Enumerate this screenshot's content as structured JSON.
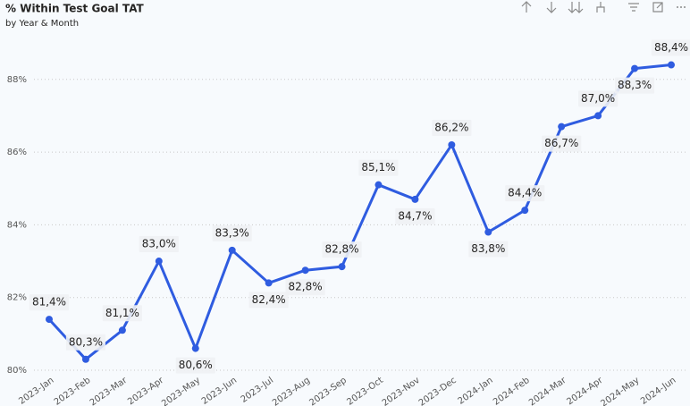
{
  "chart_data": {
    "type": "line",
    "title": "% Within Test Goal TAT",
    "subtitle": "by Year & Month",
    "categories": [
      "2023-Jan",
      "2023-Feb",
      "2023-Mar",
      "2023-Apr",
      "2023-May",
      "2023-Jun",
      "2023-Jul",
      "2023-Aug",
      "2023-Sep",
      "2023-Oct",
      "2023-Nov",
      "2023-Dec",
      "2024-Jan",
      "2024-Feb",
      "2024-Mar",
      "2024-Apr",
      "2024-May",
      "2024-Jun"
    ],
    "values": [
      81.4,
      80.3,
      81.1,
      83.0,
      80.6,
      83.3,
      82.4,
      82.75,
      82.85,
      85.1,
      84.7,
      86.2,
      83.8,
      84.4,
      86.7,
      87.0,
      88.3,
      88.4
    ],
    "value_labels": [
      "81,4%",
      "80,3%",
      "81,1%",
      "83,0%",
      "80,6%",
      "83,3%",
      "82,4%",
      "82,8%",
      "82,8%",
      "85,1%",
      "84,7%",
      "86,2%",
      "83,8%",
      "84,4%",
      "86,7%",
      "87,0%",
      "88,3%",
      "88,4%"
    ],
    "color": "#2f5ce0",
    "ylim": [
      80,
      89.2
    ],
    "yticks": [
      {
        "value": 80,
        "label": "80%"
      },
      {
        "value": 82,
        "label": "82%"
      },
      {
        "value": 84,
        "label": "84%"
      },
      {
        "value": 86,
        "label": "86%"
      },
      {
        "value": 88,
        "label": "88%"
      }
    ],
    "grid": true
  }
}
